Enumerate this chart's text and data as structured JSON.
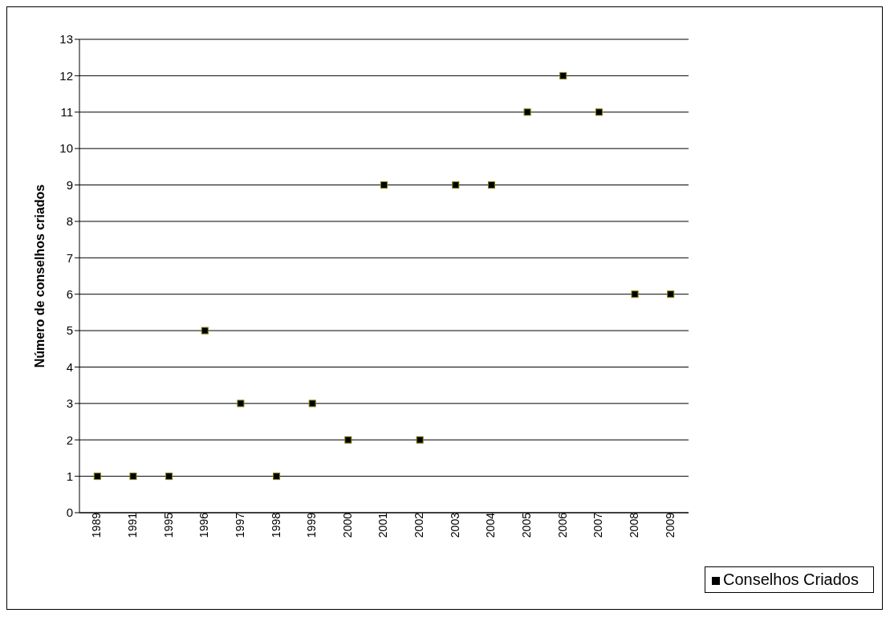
{
  "chart_data": {
    "type": "scatter",
    "ylabel": "Número de conselhos criados",
    "categories": [
      "1989",
      "1991",
      "1995",
      "1996",
      "1997",
      "1998",
      "1999",
      "2000",
      "2001",
      "2002",
      "2003",
      "2004",
      "2005",
      "2006",
      "2007",
      "2008",
      "2009"
    ],
    "series": [
      {
        "name": "Conselhos Criados",
        "color": "#000000",
        "values": [
          1,
          1,
          1,
          5,
          3,
          1,
          3,
          2,
          9,
          2,
          9,
          9,
          11,
          12,
          11,
          6,
          6
        ]
      }
    ],
    "ylim": [
      0,
      13
    ],
    "yticks": [
      0,
      1,
      2,
      3,
      4,
      5,
      6,
      7,
      8,
      9,
      10,
      11,
      12,
      13
    ],
    "grid": "y",
    "legend": "bottom right",
    "marker": "square"
  }
}
